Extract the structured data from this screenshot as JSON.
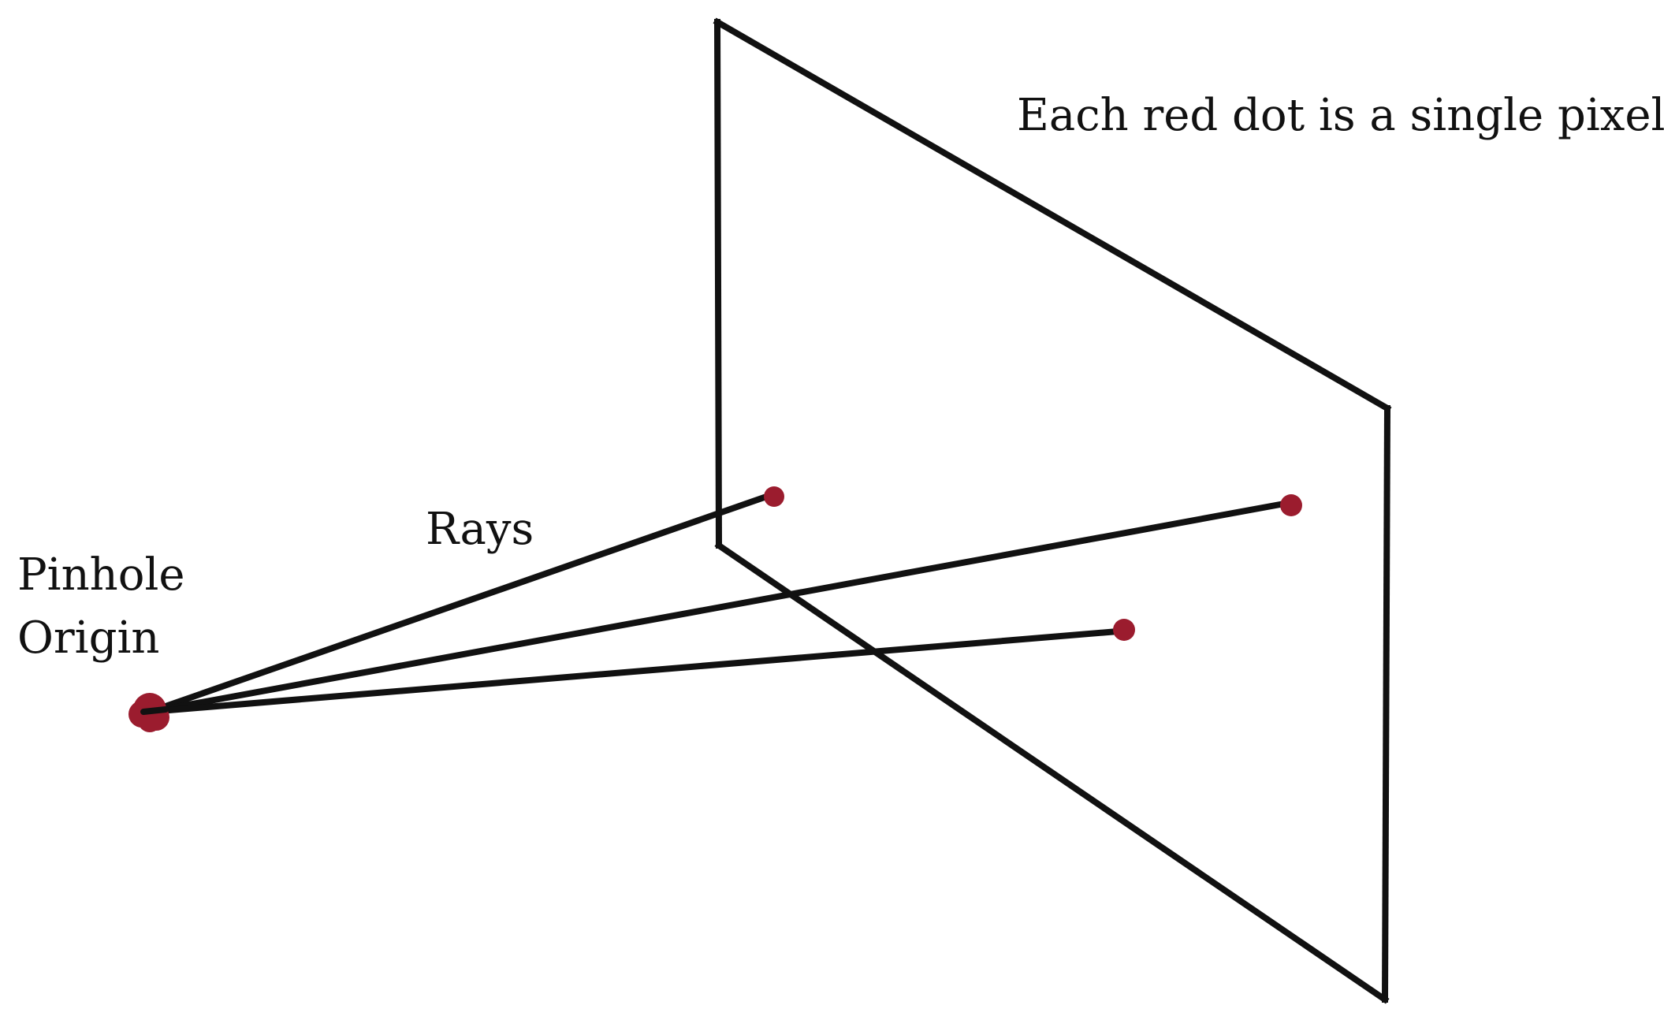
{
  "labels": {
    "note": "Each red dot is a single pixel.",
    "rays": "Rays",
    "origin_line1": "Pinhole",
    "origin_line2": "Origin"
  },
  "colors": {
    "dot": "#9b1c2e",
    "line": "#111111",
    "background": "#ffffff"
  }
}
